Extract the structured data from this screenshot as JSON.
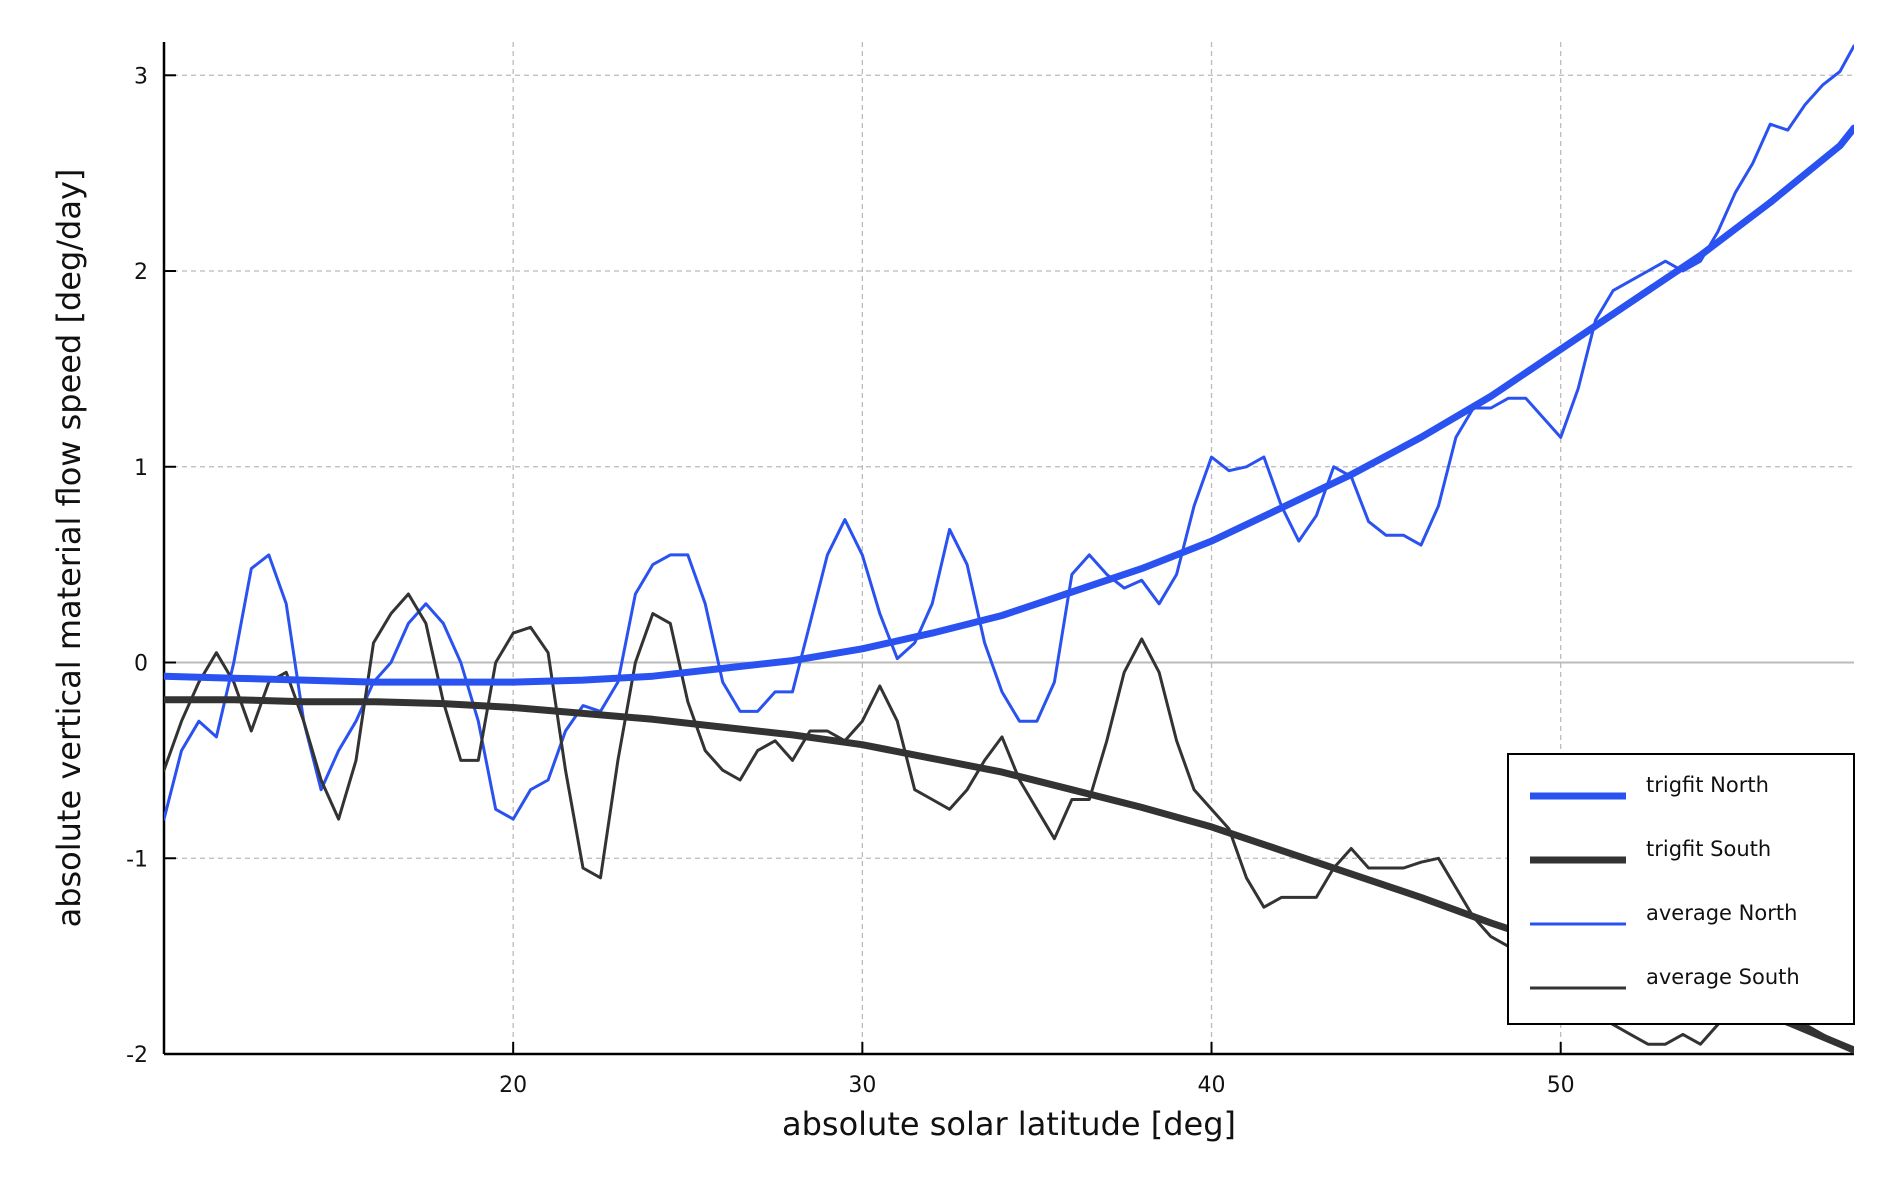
{
  "chart_data": {
    "type": "line",
    "x_label": "absolute solar latitude [deg]",
    "y_label": "absolute vertical material flow speed [deg/day]",
    "xlim": [
      10,
      58.4
    ],
    "ylim": [
      -2,
      3.17
    ],
    "xticks": [
      20,
      30,
      40,
      50
    ],
    "yticks": [
      -2,
      -1,
      0,
      1,
      2,
      3
    ],
    "grid": true,
    "legend": "lower right",
    "series": [
      {
        "name": "trigfit North",
        "color": "#2a52f0",
        "width": 7,
        "x": [
          10,
          12,
          14,
          16,
          18,
          20,
          22,
          24,
          26,
          28,
          30,
          32,
          34,
          36,
          38,
          40,
          42,
          44,
          46,
          48,
          50,
          52,
          54,
          56,
          58,
          58.4
        ],
        "values": [
          -0.07,
          -0.08,
          -0.09,
          -0.1,
          -0.1,
          -0.1,
          -0.09,
          -0.07,
          -0.03,
          0.01,
          0.07,
          0.15,
          0.24,
          0.36,
          0.48,
          0.62,
          0.79,
          0.96,
          1.15,
          1.36,
          1.6,
          1.84,
          2.08,
          2.35,
          2.64,
          2.73
        ]
      },
      {
        "name": "trigfit South",
        "color": "#333333",
        "width": 7,
        "x": [
          10,
          12,
          14,
          16,
          18,
          20,
          22,
          24,
          26,
          28,
          30,
          32,
          34,
          36,
          38,
          40,
          42,
          44,
          46,
          48,
          50,
          52,
          54,
          56,
          58,
          58.4
        ],
        "values": [
          -0.19,
          -0.19,
          -0.2,
          -0.2,
          -0.21,
          -0.23,
          -0.26,
          -0.29,
          -0.33,
          -0.37,
          -0.42,
          -0.49,
          -0.56,
          -0.65,
          -0.74,
          -0.84,
          -0.96,
          -1.08,
          -1.2,
          -1.33,
          -1.45,
          -1.58,
          -1.7,
          -1.8,
          -1.95,
          -1.98
        ]
      },
      {
        "name": "average North",
        "color": "#2a52f0",
        "width": 3,
        "x": [
          10,
          10.5,
          11,
          11.5,
          12,
          12.5,
          13,
          13.5,
          14,
          14.5,
          15,
          15.5,
          16,
          16.5,
          17,
          17.5,
          18,
          18.5,
          19,
          19.5,
          20,
          20.5,
          21,
          21.5,
          22,
          22.5,
          23,
          23.5,
          24,
          24.5,
          25,
          25.5,
          26,
          26.5,
          27,
          27.5,
          28,
          28.5,
          29,
          29.5,
          30,
          30.5,
          31,
          31.5,
          32,
          32.5,
          33,
          33.5,
          34,
          34.5,
          35,
          35.5,
          36,
          36.5,
          37,
          37.5,
          38,
          38.5,
          39,
          39.5,
          40,
          40.5,
          41,
          41.5,
          42,
          42.5,
          43,
          43.5,
          44,
          44.5,
          45,
          45.5,
          46,
          46.5,
          47,
          47.5,
          48,
          48.5,
          49,
          49.5,
          50,
          50.5,
          51,
          51.5,
          52,
          52.5,
          53,
          53.5,
          54,
          54.5,
          55,
          55.5,
          56,
          56.5,
          57,
          57.5,
          58,
          58.4
        ],
        "values": [
          -0.8,
          -0.45,
          -0.3,
          -0.38,
          0.0,
          0.48,
          0.55,
          0.3,
          -0.3,
          -0.65,
          -0.45,
          -0.3,
          -0.1,
          0.0,
          0.2,
          0.3,
          0.2,
          0.0,
          -0.3,
          -0.75,
          -0.8,
          -0.65,
          -0.6,
          -0.35,
          -0.22,
          -0.25,
          -0.1,
          0.35,
          0.5,
          0.55,
          0.55,
          0.3,
          -0.1,
          -0.25,
          -0.25,
          -0.15,
          -0.15,
          0.2,
          0.55,
          0.73,
          0.55,
          0.25,
          0.02,
          0.1,
          0.3,
          0.68,
          0.5,
          0.1,
          -0.15,
          -0.3,
          -0.3,
          -0.1,
          0.45,
          0.55,
          0.45,
          0.38,
          0.42,
          0.3,
          0.45,
          0.8,
          1.05,
          0.98,
          1.0,
          1.05,
          0.8,
          0.62,
          0.75,
          1.0,
          0.95,
          0.72,
          0.65,
          0.65,
          0.6,
          0.8,
          1.15,
          1.3,
          1.3,
          1.35,
          1.35,
          1.25,
          1.15,
          1.4,
          1.75,
          1.9,
          1.95,
          2.0,
          2.05,
          2.0,
          2.05,
          2.2,
          2.4,
          2.55,
          2.75,
          2.72,
          2.85,
          2.95,
          3.02,
          3.15
        ]
      },
      {
        "name": "average South",
        "color": "#333333",
        "width": 3,
        "x": [
          10,
          10.5,
          11,
          11.5,
          12,
          12.5,
          13,
          13.5,
          14,
          14.5,
          15,
          15.5,
          16,
          16.5,
          17,
          17.5,
          18,
          18.5,
          19,
          19.5,
          20,
          20.5,
          21,
          21.5,
          22,
          22.5,
          23,
          23.5,
          24,
          24.5,
          25,
          25.5,
          26,
          26.5,
          27,
          27.5,
          28,
          28.5,
          29,
          29.5,
          30,
          30.5,
          31,
          31.5,
          32,
          32.5,
          33,
          33.5,
          34,
          34.5,
          35,
          35.5,
          36,
          36.5,
          37,
          37.5,
          38,
          38.5,
          39,
          39.5,
          40,
          40.5,
          41,
          41.5,
          42,
          42.5,
          43,
          43.5,
          44,
          44.5,
          45,
          45.5,
          46,
          46.5,
          47,
          47.5,
          48,
          48.5,
          49,
          49.5,
          50,
          50.5,
          51,
          51.5,
          52,
          52.5,
          53,
          53.5,
          54,
          54.5,
          55,
          55.5,
          56,
          56.5,
          57,
          57.5,
          58,
          58.4
        ],
        "values": [
          -0.55,
          -0.3,
          -0.1,
          0.05,
          -0.1,
          -0.35,
          -0.1,
          -0.05,
          -0.3,
          -0.6,
          -0.8,
          -0.5,
          0.1,
          0.25,
          0.35,
          0.2,
          -0.2,
          -0.5,
          -0.5,
          0.0,
          0.15,
          0.18,
          0.05,
          -0.55,
          -1.05,
          -1.1,
          -0.5,
          0.0,
          0.25,
          0.2,
          -0.2,
          -0.45,
          -0.55,
          -0.6,
          -0.45,
          -0.4,
          -0.5,
          -0.35,
          -0.35,
          -0.4,
          -0.3,
          -0.12,
          -0.3,
          -0.65,
          -0.7,
          -0.75,
          -0.65,
          -0.5,
          -0.38,
          -0.6,
          -0.75,
          -0.9,
          -0.7,
          -0.7,
          -0.4,
          -0.05,
          0.12,
          -0.05,
          -0.4,
          -0.65,
          -0.75,
          -0.85,
          -1.1,
          -1.25,
          -1.2,
          -1.2,
          -1.2,
          -1.05,
          -0.95,
          -1.05,
          -1.05,
          -1.05,
          -1.02,
          -1.0,
          -1.15,
          -1.3,
          -1.4,
          -1.45,
          -1.55,
          -1.6,
          -1.65,
          -1.7,
          -1.8,
          -1.85,
          -1.9,
          -1.95,
          -1.95,
          -1.9,
          -1.95,
          -1.85,
          -1.75,
          -1.8,
          -1.8,
          -1.85,
          -1.85,
          -1.9,
          -1.95,
          -1.98
        ]
      }
    ]
  }
}
